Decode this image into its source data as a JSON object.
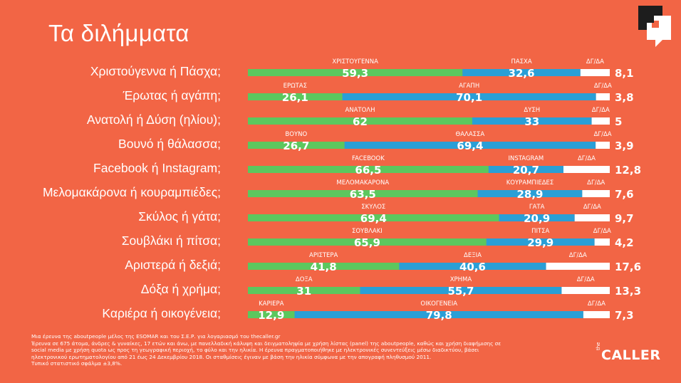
{
  "title": "Τα διλήμματα",
  "colors": {
    "background": "#f26545",
    "first": "#5cc75e",
    "second": "#2a9fd6",
    "dkna": "#ffffff"
  },
  "chart_data": {
    "type": "bar",
    "orientation": "horizontal",
    "stacked": true,
    "dkna_label": "ΔΓ/ΔΑ",
    "rows": [
      {
        "question": "Χριστούγεννα ή Πάσχα;",
        "a_label": "ΧΡΙΣΤΟΥΓΕΝΝΑ",
        "a": 59.3,
        "b_label": "ΠΑΣΧΑ",
        "b": 32.6,
        "dkna": 8.1,
        "a_text": "59,3",
        "b_text": "32,6",
        "dkna_text": "8,1"
      },
      {
        "question": "Έρωτας ή αγάπη;",
        "a_label": "ΕΡΩΤΑΣ",
        "a": 26.1,
        "b_label": "ΑΓΑΠΗ",
        "b": 70.1,
        "dkna": 3.8,
        "a_text": "26,1",
        "b_text": "70,1",
        "dkna_text": "3,8"
      },
      {
        "question": "Ανατολή ή Δύση (ηλίου);",
        "a_label": "ΑΝΑΤΟΛΗ",
        "a": 62,
        "b_label": "ΔΥΣΗ",
        "b": 33,
        "dkna": 5,
        "a_text": "62",
        "b_text": "33",
        "dkna_text": "5"
      },
      {
        "question": "Βουνό ή θάλασσα;",
        "a_label": "ΒΟΥΝΟ",
        "a": 26.7,
        "b_label": "ΘΑΛΑΣΣΑ",
        "b": 69.4,
        "dkna": 3.9,
        "a_text": "26,7",
        "b_text": "69,4",
        "dkna_text": "3,9"
      },
      {
        "question": "Facebook ή Instagram;",
        "a_label": "FACEBOOK",
        "a": 66.5,
        "b_label": "INSTAGRAM",
        "b": 20.7,
        "dkna": 12.8,
        "a_text": "66,5",
        "b_text": "20,7",
        "dkna_text": "12,8"
      },
      {
        "question": "Μελομακάρονα ή κουραμπιέδες;",
        "a_label": "ΜΕΛΟΜΑΚΑΡΟΝΑ",
        "a": 63.5,
        "b_label": "ΚΟΥΡΑΜΠΙΕΔΕΣ",
        "b": 28.9,
        "dkna": 7.6,
        "a_text": "63,5",
        "b_text": "28,9",
        "dkna_text": "7,6"
      },
      {
        "question": "Σκύλος ή γάτα;",
        "a_label": "ΣΚΥΛΟΣ",
        "a": 69.4,
        "b_label": "ΓΑΤΑ",
        "b": 20.9,
        "dkna": 9.7,
        "a_text": "69,4",
        "b_text": "20,9",
        "dkna_text": "9,7"
      },
      {
        "question": "Σουβλάκι ή πίτσα;",
        "a_label": "ΣΟΥΒΛΑΚΙ",
        "a": 65.9,
        "b_label": "ΠΙΤΣΑ",
        "b": 29.9,
        "dkna": 4.2,
        "a_text": "65,9",
        "b_text": "29,9",
        "dkna_text": "4,2"
      },
      {
        "question": "Αριστερά ή δεξιά;",
        "a_label": "ΑΡΙΣΤΕΡΑ",
        "a": 41.8,
        "b_label": "ΔΕΞΙΑ",
        "b": 40.6,
        "dkna": 17.6,
        "a_text": "41,8",
        "b_text": "40,6",
        "dkna_text": "17,6"
      },
      {
        "question": "Δόξα ή χρήμα;",
        "a_label": "ΔΟΞΑ",
        "a": 31,
        "b_label": "ΧΡΗΜΑ",
        "b": 55.7,
        "dkna": 13.3,
        "a_text": "31",
        "b_text": "55,7",
        "dkna_text": "13,3"
      },
      {
        "question": "Καριέρα ή οικογένεια;",
        "a_label": "ΚΑΡΙΕΡΑ",
        "a": 12.9,
        "b_label": "ΟΙΚΟΓΕΝΕΙΑ",
        "b": 79.8,
        "dkna": 7.3,
        "a_text": "12,9",
        "b_text": "79,8",
        "dkna_text": "7,3"
      }
    ]
  },
  "footnote": {
    "line1": "Μια έρευνα της aboutpeople μέλος της ESOMAR και του Σ.Ε.Ρ. για λογαριασμό του thecaller.gr",
    "line2": "Έρευνα σε 675 άτομα, άνδρες & γυναίκες, 17 ετών και άνω, με πανελλαδική κάλυψη και δειγματοληψία με χρήση λίστας (panel) της aboutpeople, καθώς και χρήση διαφήμισης σε",
    "line3": "social media με χρήση quota ως προς τη γεωγραφική περιοχή, το φύλο και την ηλικία. Η έρευνα πραγματοποιήθηκε με ηλεκτρονικές συνεντεύξεις μέσω διαδικτύου, βάσει",
    "line4": "ηλεκτρονικού ερωτηματολογίου από 21 έως 24  Δεκεμβρίου 2018. Οι σταθμίσεις έγιναν με βάση την ηλικία σύμφωνα με την απογραφή πληθυσμού 2011.",
    "line5": "Τυπικό στατιστικό σφάλμα ±3,8%."
  },
  "brand": {
    "prefix": "the",
    "name": "CALLER"
  },
  "logo_icon": "speech-bubble-logo-icon"
}
